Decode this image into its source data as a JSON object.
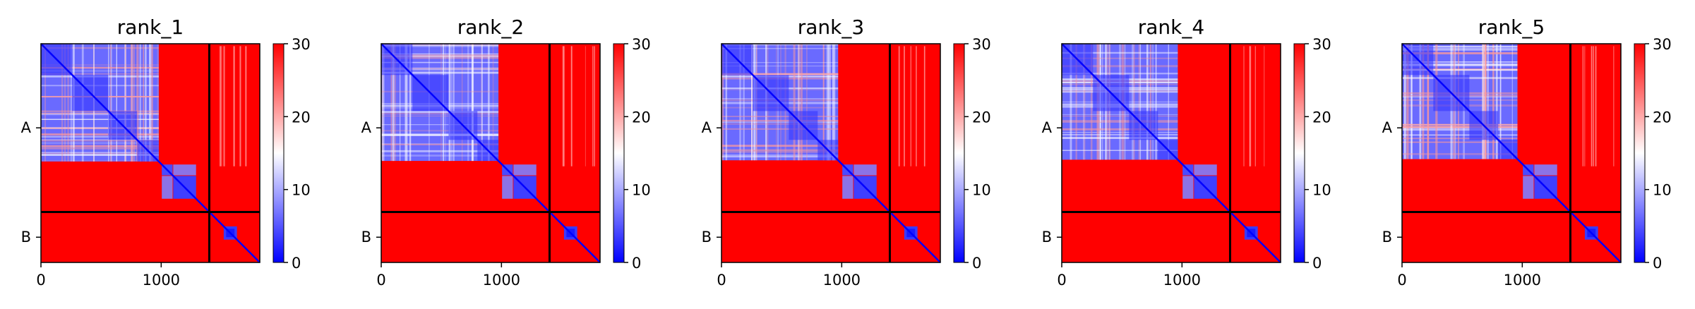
{
  "chart_data": {
    "type": "heatmap",
    "colormap": "bwr",
    "colors": {
      "low": "#0000ff",
      "mid": "#ffffff",
      "high": "#ff0000",
      "divider": "#000000"
    },
    "x_ticks": [
      {
        "value": 0,
        "label": "0"
      },
      {
        "value": 1000,
        "label": "1000"
      }
    ],
    "x_range": [
      0,
      1820
    ],
    "chains": [
      {
        "label": "A",
        "start": 0,
        "end": 1400,
        "center": 700
      },
      {
        "label": "B",
        "start": 1400,
        "end": 1820,
        "center": 1610
      }
    ],
    "colorbar": {
      "range": [
        0,
        30
      ],
      "ticks": [
        {
          "value": 0,
          "label": "0"
        },
        {
          "value": 10,
          "label": "10"
        },
        {
          "value": 20,
          "label": "20"
        },
        {
          "value": 30,
          "label": "30"
        }
      ]
    },
    "panels": [
      {
        "title": "rank_1"
      },
      {
        "title": "rank_2"
      },
      {
        "title": "rank_3"
      },
      {
        "title": "rank_4"
      },
      {
        "title": "rank_5"
      }
    ]
  }
}
